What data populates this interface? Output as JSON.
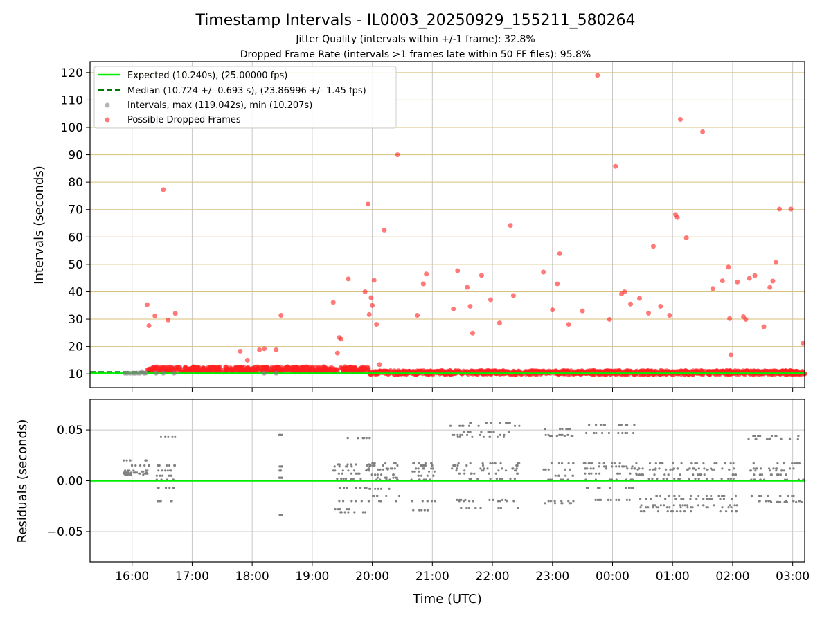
{
  "title": "Timestamp Intervals - IL0003_20250929_155211_580264",
  "subtitle_jitter": "Jitter Quality (intervals within +/-1 frame): 32.8%",
  "subtitle_dropped": "Dropped Frame Rate (intervals >1 frames late within 50 FF files): 95.8%",
  "colors": {
    "expected": "#00ee00",
    "median": "#007a00",
    "intervals": "#808080",
    "dropped": "#ff2020",
    "hgrid": "#d8c27a",
    "vgrid": "#c8c8c8"
  },
  "chart_data": [
    {
      "type": "scatter",
      "panel": "top",
      "ylabel": "Intervals (seconds)",
      "xlabel": "",
      "ylim": [
        5,
        124
      ],
      "xlim_hours": [
        15.3,
        27.2
      ],
      "grid": true,
      "legend_position": "upper-left",
      "yticks": [
        10,
        20,
        30,
        40,
        50,
        60,
        70,
        80,
        90,
        100,
        110,
        120
      ],
      "legend": [
        "Expected (10.240s), (25.00000 fps)",
        "Median (10.724 +/- 0.693 s), (23.86996 +/- 1.45 fps)",
        "Intervals, max (119.042s), min (10.207s)",
        "Possible Dropped Frames"
      ],
      "expected_interval": 10.24,
      "median_interval": 10.724,
      "normal_intervals": {
        "x_hours": [
          15.88,
          15.92,
          15.97,
          16.02,
          16.05,
          16.09,
          16.13,
          16.16,
          16.2,
          16.23,
          16.4,
          16.52,
          16.7,
          18.2,
          18.4
        ],
        "y_seconds": [
          10.24,
          10.25,
          10.23,
          10.26,
          10.24,
          10.3,
          10.25,
          10.8,
          10.24,
          10.3,
          10.24,
          10.25,
          10.24,
          10.24,
          10.24
        ]
      },
      "dropped_frames": {
        "x_hours": [
          16.25,
          16.28,
          16.38,
          16.52,
          16.6,
          16.72,
          17.8,
          17.92,
          18.12,
          18.2,
          18.4,
          18.48,
          19.35,
          19.42,
          19.45,
          19.48,
          19.6,
          19.88,
          19.93,
          19.95,
          19.98,
          20.0,
          20.03,
          20.07,
          20.12,
          20.2,
          20.42,
          20.75,
          20.85,
          20.9,
          21.35,
          21.42,
          21.58,
          21.63,
          21.67,
          21.82,
          21.97,
          22.12,
          22.3,
          22.35,
          22.85,
          23.0,
          23.08,
          23.12,
          23.27,
          23.5,
          23.75,
          23.95,
          24.05,
          24.15,
          24.2,
          24.3,
          24.45,
          24.6,
          24.68,
          24.8,
          24.95,
          25.05,
          25.08,
          25.13,
          25.23,
          25.5,
          25.67,
          25.83,
          25.93,
          25.95,
          25.97,
          26.08,
          26.18,
          26.22,
          26.28,
          26.37,
          26.52,
          26.62,
          26.67,
          26.72,
          26.78,
          26.97,
          27.17
        ],
        "y_seconds": [
          35.3,
          27.6,
          31.2,
          77.3,
          29.7,
          32.1,
          18.3,
          15.0,
          18.8,
          19.2,
          18.8,
          31.4,
          36.1,
          17.6,
          23.3,
          22.7,
          44.7,
          40.0,
          72.0,
          31.7,
          37.8,
          35.0,
          44.2,
          28.1,
          13.4,
          62.5,
          90.0,
          31.4,
          42.9,
          46.5,
          33.7,
          47.7,
          41.6,
          34.7,
          24.9,
          46.0,
          37.1,
          28.6,
          64.2,
          38.6,
          47.2,
          33.4,
          42.9,
          53.9,
          28.1,
          33.0,
          119.0,
          29.9,
          85.8,
          39.2,
          40.0,
          35.5,
          37.6,
          32.2,
          56.6,
          34.7,
          31.4,
          68.2,
          67.1,
          102.9,
          59.7,
          98.4,
          41.2,
          44.0,
          49.0,
          30.2,
          16.9,
          43.6,
          30.9,
          29.9,
          44.9,
          45.9,
          27.2,
          41.6,
          43.9,
          50.7,
          70.2,
          70.2,
          21.1
        ],
        "continuous_band": [
          {
            "x_start_hours": 16.25,
            "x_end_hours": 19.95,
            "y_low": 10.6,
            "y_high": 12.6
          },
          {
            "x_start_hours": 19.95,
            "x_end_hours": 27.2,
            "y_low": 9.8,
            "y_high": 11.2
          }
        ]
      }
    },
    {
      "type": "scatter",
      "panel": "bottom",
      "ylabel": "Residuals (seconds)",
      "xlabel": "Time (UTC)",
      "ylim": [
        -0.08,
        0.08
      ],
      "xlim_hours": [
        15.3,
        27.2
      ],
      "grid": true,
      "yticks": [
        -0.05,
        0.0,
        0.05
      ],
      "ytick_labels": [
        "−0.05",
        "0.00",
        "0.05"
      ],
      "xticks_hours": [
        16,
        17,
        18,
        19,
        20,
        21,
        22,
        23,
        24,
        25,
        26,
        27
      ],
      "xtick_labels": [
        "16:00",
        "17:00",
        "18:00",
        "19:00",
        "20:00",
        "21:00",
        "22:00",
        "23:00",
        "00:00",
        "01:00",
        "02:00",
        "03:00"
      ],
      "zero_line": 0.0,
      "residual_clusters": [
        {
          "x_start_hours": 15.86,
          "x_end_hours": 16.28,
          "values": [
            0.008,
            0.007,
            0.009,
            0.006,
            0.008,
            0.01,
            0.02,
            0.015
          ]
        },
        {
          "x_start_hours": 16.38,
          "x_end_hours": 16.72,
          "values": [
            0.01,
            0.005,
            -0.007,
            0.015,
            -0.02,
            0.043,
            0.001
          ]
        },
        {
          "x_start_hours": 18.45,
          "x_end_hours": 18.5,
          "values": [
            0.01,
            0.003,
            -0.034,
            0.045,
            0.014
          ]
        },
        {
          "x_start_hours": 19.35,
          "x_end_hours": 19.98,
          "values": [
            0.016,
            0.01,
            0.002,
            -0.007,
            -0.031,
            0.014,
            0.007,
            0.042,
            -0.028,
            -0.02
          ]
        },
        {
          "x_start_hours": 19.9,
          "x_end_hours": 20.45,
          "values": [
            0.017,
            0.012,
            0.006,
            0.001,
            -0.02,
            -0.008,
            0.015,
            0.011,
            0.003,
            -0.015
          ]
        },
        {
          "x_start_hours": 20.65,
          "x_end_hours": 21.05,
          "values": [
            0.017,
            0.012,
            0.005,
            0.001,
            -0.02,
            -0.029,
            0.015,
            0.009
          ]
        },
        {
          "x_start_hours": 21.3,
          "x_end_hours": 22.45,
          "values": [
            0.017,
            0.012,
            0.007,
            0.002,
            0.057,
            0.048,
            0.045,
            -0.019,
            -0.027,
            0.054,
            -0.02,
            0.043,
            0.015,
            0.01
          ]
        },
        {
          "x_start_hours": 22.85,
          "x_end_hours": 23.35,
          "values": [
            0.017,
            0.011,
            0.005,
            0.001,
            0.051,
            0.045,
            -0.02,
            -0.022,
            0.044
          ]
        },
        {
          "x_start_hours": 23.5,
          "x_end_hours": 24.4,
          "values": [
            0.017,
            0.012,
            0.007,
            0.001,
            0.055,
            0.047,
            -0.019,
            -0.007,
            0.014
          ]
        },
        {
          "x_start_hours": 24.4,
          "x_end_hours": 26.1,
          "values": [
            0.017,
            0.012,
            0.006,
            0.002,
            -0.024,
            -0.03,
            -0.018,
            -0.026,
            -0.015,
            0.011
          ]
        },
        {
          "x_start_hours": 26.25,
          "x_end_hours": 27.2,
          "values": [
            0.017,
            0.012,
            0.006,
            0.001,
            0.044,
            0.041,
            -0.02,
            -0.015,
            -0.021,
            0.01
          ]
        }
      ]
    }
  ]
}
